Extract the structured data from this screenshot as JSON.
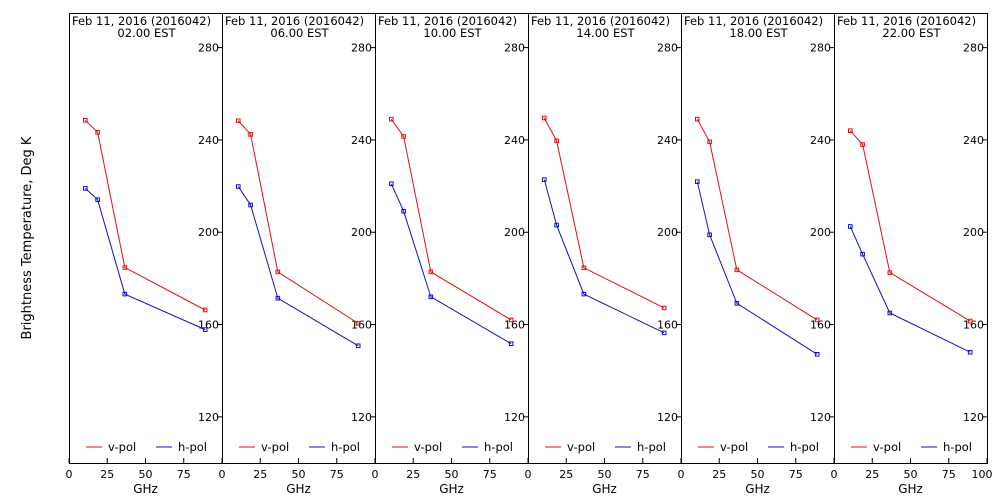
{
  "chart_data": {
    "type": "line",
    "ylabel": "Brightness Temperature, Deg K",
    "xlabel": "GHz",
    "xlim": [
      0,
      100
    ],
    "ylim": [
      100,
      295
    ],
    "xticks": [
      0,
      25,
      50,
      75,
      100
    ],
    "xtick_labels": [
      "0",
      "25",
      "50",
      "75",
      "100"
    ],
    "yticks": [
      120,
      160,
      200,
      240,
      280
    ],
    "ytick_labels": [
      "120",
      "160",
      "200",
      "240",
      "280"
    ],
    "legend": {
      "placement": "bottom",
      "entries": [
        "v-pol",
        "h-pol"
      ]
    },
    "colors": {
      "v-pol": "#e01010",
      "h-pol": "#1010c8",
      "axes": "#000000"
    },
    "x": [
      10.65,
      18.7,
      36.5,
      89.0
    ],
    "panels": [
      {
        "title": "Feb 11, 2016 (2016042)",
        "subtitle": "02.00 EST",
        "series": [
          {
            "name": "v-pol",
            "values": [
              248.5,
              243.3,
              184.7,
              166.3
            ]
          },
          {
            "name": "h-pol",
            "values": [
              219.0,
              214.1,
              173.2,
              157.8
            ]
          }
        ]
      },
      {
        "title": "Feb 11, 2016 (2016042)",
        "subtitle": "06.00 EST",
        "series": [
          {
            "name": "v-pol",
            "values": [
              248.3,
              242.4,
              182.8,
              160.5
            ]
          },
          {
            "name": "h-pol",
            "values": [
              219.8,
              211.8,
              171.4,
              150.8
            ]
          }
        ]
      },
      {
        "title": "Feb 11, 2016 (2016042)",
        "subtitle": "10.00 EST",
        "series": [
          {
            "name": "v-pol",
            "values": [
              249.0,
              241.5,
              182.8,
              162.0
            ]
          },
          {
            "name": "h-pol",
            "values": [
              221.0,
              209.1,
              172.0,
              151.7
            ]
          }
        ]
      },
      {
        "title": "Feb 11, 2016 (2016042)",
        "subtitle": "14.00 EST",
        "series": [
          {
            "name": "v-pol",
            "values": [
              249.5,
              239.6,
              184.6,
              167.2
            ]
          },
          {
            "name": "h-pol",
            "values": [
              222.8,
              203.1,
              173.2,
              156.4
            ]
          }
        ]
      },
      {
        "title": "Feb 11, 2016 (2016042)",
        "subtitle": "18.00 EST",
        "series": [
          {
            "name": "v-pol",
            "values": [
              249.0,
              239.2,
              183.7,
              162.0
            ]
          },
          {
            "name": "h-pol",
            "values": [
              221.9,
              198.9,
              169.2,
              147.1
            ]
          }
        ]
      },
      {
        "title": "Feb 11, 2016 (2016042)",
        "subtitle": "22.00 EST",
        "series": [
          {
            "name": "v-pol",
            "values": [
              244.0,
              238.0,
              182.5,
              161.5
            ]
          },
          {
            "name": "h-pol",
            "values": [
              202.5,
              190.5,
              165.0,
              148.0
            ]
          }
        ]
      }
    ]
  }
}
